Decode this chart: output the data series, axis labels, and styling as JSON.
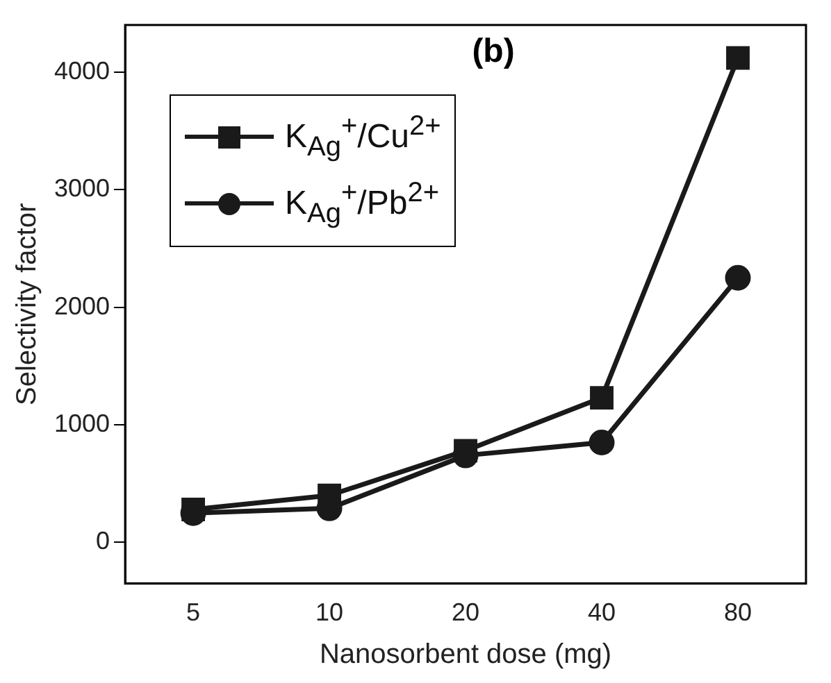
{
  "chart_data": {
    "type": "line",
    "xlabel": "Nanosorbent dose (mg)",
    "ylabel": "Selectivity factor",
    "annotations": [
      "(b)"
    ],
    "categories": [
      "5",
      "10",
      "20",
      "40",
      "80"
    ],
    "series": [
      {
        "name": "K$_{Ag}$$^{+}$/Cu$^{2+}$",
        "color": "#1a1a1a",
        "marker": "square",
        "values": [
          280,
          400,
          780,
          1230,
          4120
        ]
      },
      {
        "name": "K$_{Ag}$$^{+}$/Pb$^{2+}$",
        "color": "#1a1a1a",
        "marker": "circle",
        "values": [
          250,
          290,
          740,
          850,
          2250
        ]
      }
    ],
    "ylim": [
      -350,
      4400
    ],
    "yticks": [
      0,
      1000,
      2000,
      3000,
      4000
    ],
    "grid": false,
    "legend": "top left",
    "line_style": "solid"
  }
}
